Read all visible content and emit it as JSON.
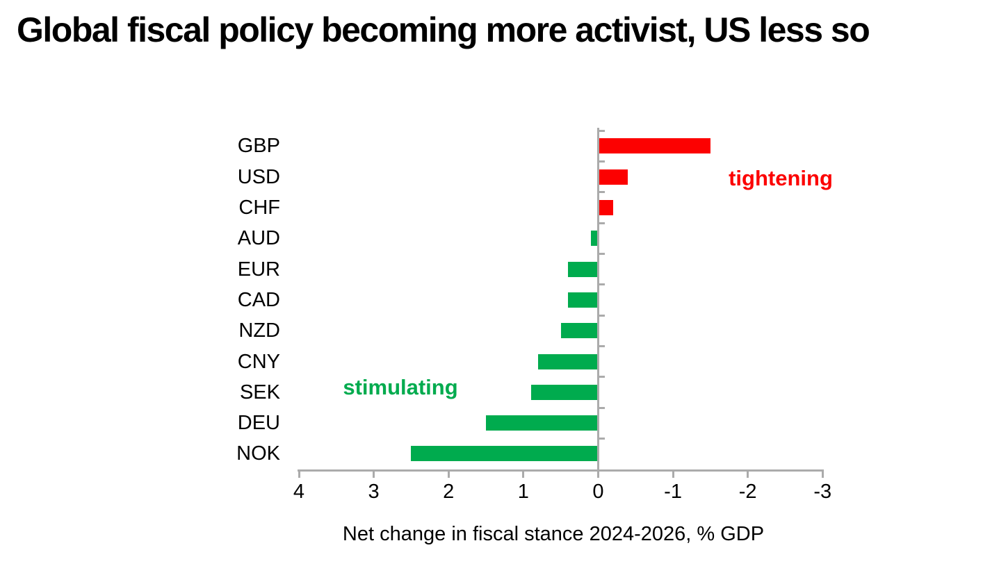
{
  "title": "Global fiscal policy becoming more activist, US less so",
  "chart_data": {
    "type": "bar",
    "orientation": "horizontal",
    "title": "Global fiscal policy becoming more activist, US less so",
    "categories": [
      "GBP",
      "USD",
      "CHF",
      "AUD",
      "EUR",
      "CAD",
      "NZD",
      "CNY",
      "SEK",
      "DEU",
      "NOK"
    ],
    "values": [
      -1.5,
      -0.4,
      -0.2,
      0.1,
      0.4,
      0.4,
      0.5,
      0.8,
      0.9,
      1.5,
      2.5
    ],
    "xlabel": "Net change in fiscal stance 2024-2026, % GDP",
    "x_ticks": [
      "4",
      "3",
      "2",
      "1",
      "0",
      "-1",
      "-2",
      "-3"
    ],
    "x_tick_values": [
      4,
      3,
      2,
      1,
      0,
      -1,
      -2,
      -3
    ],
    "xlim": [
      4,
      -3
    ],
    "x_axis_reversed": true,
    "grid": false,
    "legend": "none",
    "colors": {
      "positive_bar": "#00AB4E",
      "negative_bar": "#FC0101",
      "axis": "#ABABAB",
      "text": "#000000"
    },
    "annotations": [
      {
        "text": "tightening",
        "color": "#FC0101"
      },
      {
        "text": "stimulating",
        "color": "#00AB4E"
      }
    ]
  }
}
